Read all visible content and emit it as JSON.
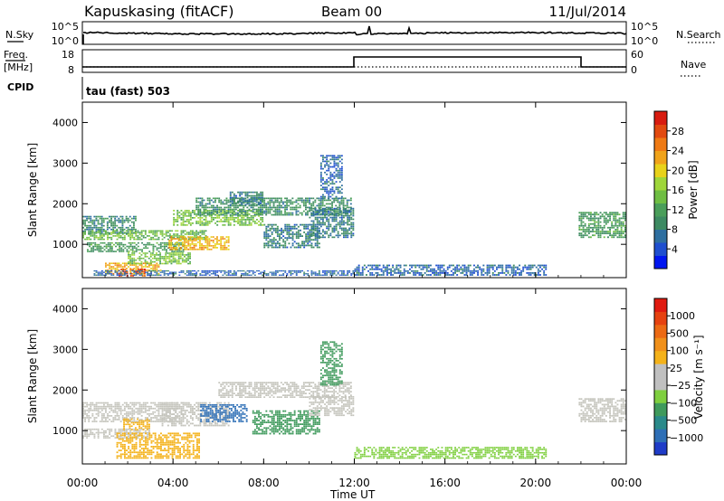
{
  "header": {
    "station": "Kapuskasing (fitACF)",
    "beam": "Beam 00",
    "date": "11/Jul/2014"
  },
  "top_panels": {
    "nsky_label": "N.Sky",
    "nsky_ticks": [
      "10^5",
      "10^0"
    ],
    "nsearch_label": "N.Search",
    "nsearch_ticks": [
      "10^5",
      "10^0"
    ],
    "freq_label": "Freq.",
    "freq_unit": "[MHz]",
    "freq_ticks": [
      "18",
      "8"
    ],
    "nave_label": "Nave",
    "nave_ticks": [
      "60",
      "0"
    ],
    "cpid_label": "CPID",
    "cpid_value": "tau (fast) 503"
  },
  "chart_data": [
    {
      "type": "heatmap",
      "name": "power",
      "ylabel": "Slant Range [km]",
      "xlabel": "",
      "xlim": [
        0,
        24
      ],
      "ylim": [
        180,
        4500
      ],
      "yticks": [
        "1000",
        "2000",
        "3000",
        "4000"
      ],
      "yticks_values": [
        1000,
        2000,
        3000,
        4000
      ],
      "colorbar": {
        "label": "Power [dB]",
        "ticks": [
          "4",
          "8",
          "12",
          "16",
          "20",
          "24",
          "28"
        ],
        "range": [
          0,
          32
        ],
        "colors": [
          "#0016f0",
          "#1f4fcf",
          "#2e6fa0",
          "#3d8a62",
          "#4a9e5a",
          "#6fbe43",
          "#9fd63a",
          "#e8d21a",
          "#f0a31a",
          "#ef7a14",
          "#e24a10",
          "#d81c10"
        ]
      },
      "regions": [
        {
          "t0": 0.0,
          "t1": 2.4,
          "r0": 1250,
          "r1": 1700,
          "v": 9
        },
        {
          "t0": 0.0,
          "t1": 5.5,
          "r0": 1100,
          "r1": 1350,
          "v": 14
        },
        {
          "t0": 0.2,
          "t1": 4.5,
          "r0": 800,
          "r1": 1050,
          "v": 11
        },
        {
          "t0": 1.0,
          "t1": 3.5,
          "r0": 250,
          "r1": 550,
          "v": 22
        },
        {
          "t0": 1.6,
          "t1": 2.8,
          "r0": 200,
          "r1": 400,
          "v": 28
        },
        {
          "t0": 2.0,
          "t1": 4.8,
          "r0": 500,
          "r1": 800,
          "v": 15
        },
        {
          "t0": 3.8,
          "t1": 6.5,
          "r0": 850,
          "r1": 1200,
          "v": 22
        },
        {
          "t0": 4.0,
          "t1": 8.0,
          "r0": 1450,
          "r1": 1850,
          "v": 15
        },
        {
          "t0": 5.0,
          "t1": 11.9,
          "r0": 1700,
          "r1": 2150,
          "v": 10
        },
        {
          "t0": 6.5,
          "t1": 8.0,
          "r0": 1950,
          "r1": 2300,
          "v": 8
        },
        {
          "t0": 8.0,
          "t1": 10.5,
          "r0": 900,
          "r1": 1500,
          "v": 8
        },
        {
          "t0": 10.0,
          "t1": 12.0,
          "r0": 1150,
          "r1": 1900,
          "v": 8
        },
        {
          "t0": 10.5,
          "t1": 11.5,
          "r0": 2100,
          "r1": 3200,
          "v": 6
        },
        {
          "t0": 21.9,
          "t1": 24.0,
          "r0": 1150,
          "r1": 1800,
          "v": 11
        },
        {
          "t0": 0.5,
          "t1": 12.0,
          "r0": 220,
          "r1": 360,
          "v": 6
        },
        {
          "t0": 12.0,
          "t1": 20.5,
          "r0": 220,
          "r1": 500,
          "v": 6
        }
      ]
    },
    {
      "type": "heatmap",
      "name": "velocity",
      "ylabel": "Slant Range [km]",
      "xlabel": "Time UT",
      "xlim": [
        0,
        24
      ],
      "ylim": [
        180,
        4500
      ],
      "xticks": [
        "00:00",
        "04:00",
        "08:00",
        "12:00",
        "16:00",
        "20:00",
        "00:00"
      ],
      "xticks_values": [
        0,
        4,
        8,
        12,
        16,
        20,
        24
      ],
      "yticks": [
        "1000",
        "2000",
        "3000",
        "4000"
      ],
      "yticks_values": [
        1000,
        2000,
        3000,
        4000
      ],
      "colorbar": {
        "label": "Velocity [m s⁻¹]",
        "ticks": [
          "1000",
          "500",
          "100",
          "25",
          "−25",
          "−100",
          "−500",
          "−1000"
        ],
        "colors": [
          "#1f3cc8",
          "#2e6fb6",
          "#2a8a8a",
          "#3f9a5c",
          "#7fcf3f",
          "#c0c0c0",
          "#c0c0c0",
          "#f4b21a",
          "#f0901a",
          "#ec6a14",
          "#e64210",
          "#e01a10"
        ]
      },
      "regions": [
        {
          "t0": 0.0,
          "t1": 4.5,
          "r0": 1200,
          "r1": 1700,
          "c": "#c4c4bc"
        },
        {
          "t0": 0.0,
          "t1": 3.0,
          "r0": 800,
          "r1": 1050,
          "c": "#c4c4bc"
        },
        {
          "t0": 1.5,
          "t1": 5.2,
          "r0": 300,
          "r1": 950,
          "c": "#f4b21a"
        },
        {
          "t0": 1.8,
          "t1": 3.0,
          "r0": 1000,
          "r1": 1300,
          "c": "#f4b21a"
        },
        {
          "t0": 3.5,
          "t1": 6.5,
          "r0": 1100,
          "r1": 1700,
          "c": "#c4c4bc"
        },
        {
          "t0": 5.2,
          "t1": 7.3,
          "r0": 1200,
          "r1": 1650,
          "c": "#2e6fb6"
        },
        {
          "t0": 6.0,
          "t1": 11.9,
          "r0": 1800,
          "r1": 2200,
          "c": "#c4c4bc"
        },
        {
          "t0": 7.5,
          "t1": 10.5,
          "r0": 900,
          "r1": 1500,
          "c": "#3f9a5c"
        },
        {
          "t0": 10.0,
          "t1": 12.0,
          "r0": 1350,
          "r1": 1850,
          "c": "#c4c4bc"
        },
        {
          "t0": 10.5,
          "t1": 11.5,
          "r0": 2100,
          "r1": 3200,
          "c": "#3f9a5c"
        },
        {
          "t0": 21.9,
          "t1": 24.0,
          "r0": 1200,
          "r1": 1800,
          "c": "#c4c4bc"
        },
        {
          "t0": 12.0,
          "t1": 20.5,
          "r0": 300,
          "r1": 600,
          "c": "#7fcf3f"
        }
      ]
    }
  ]
}
